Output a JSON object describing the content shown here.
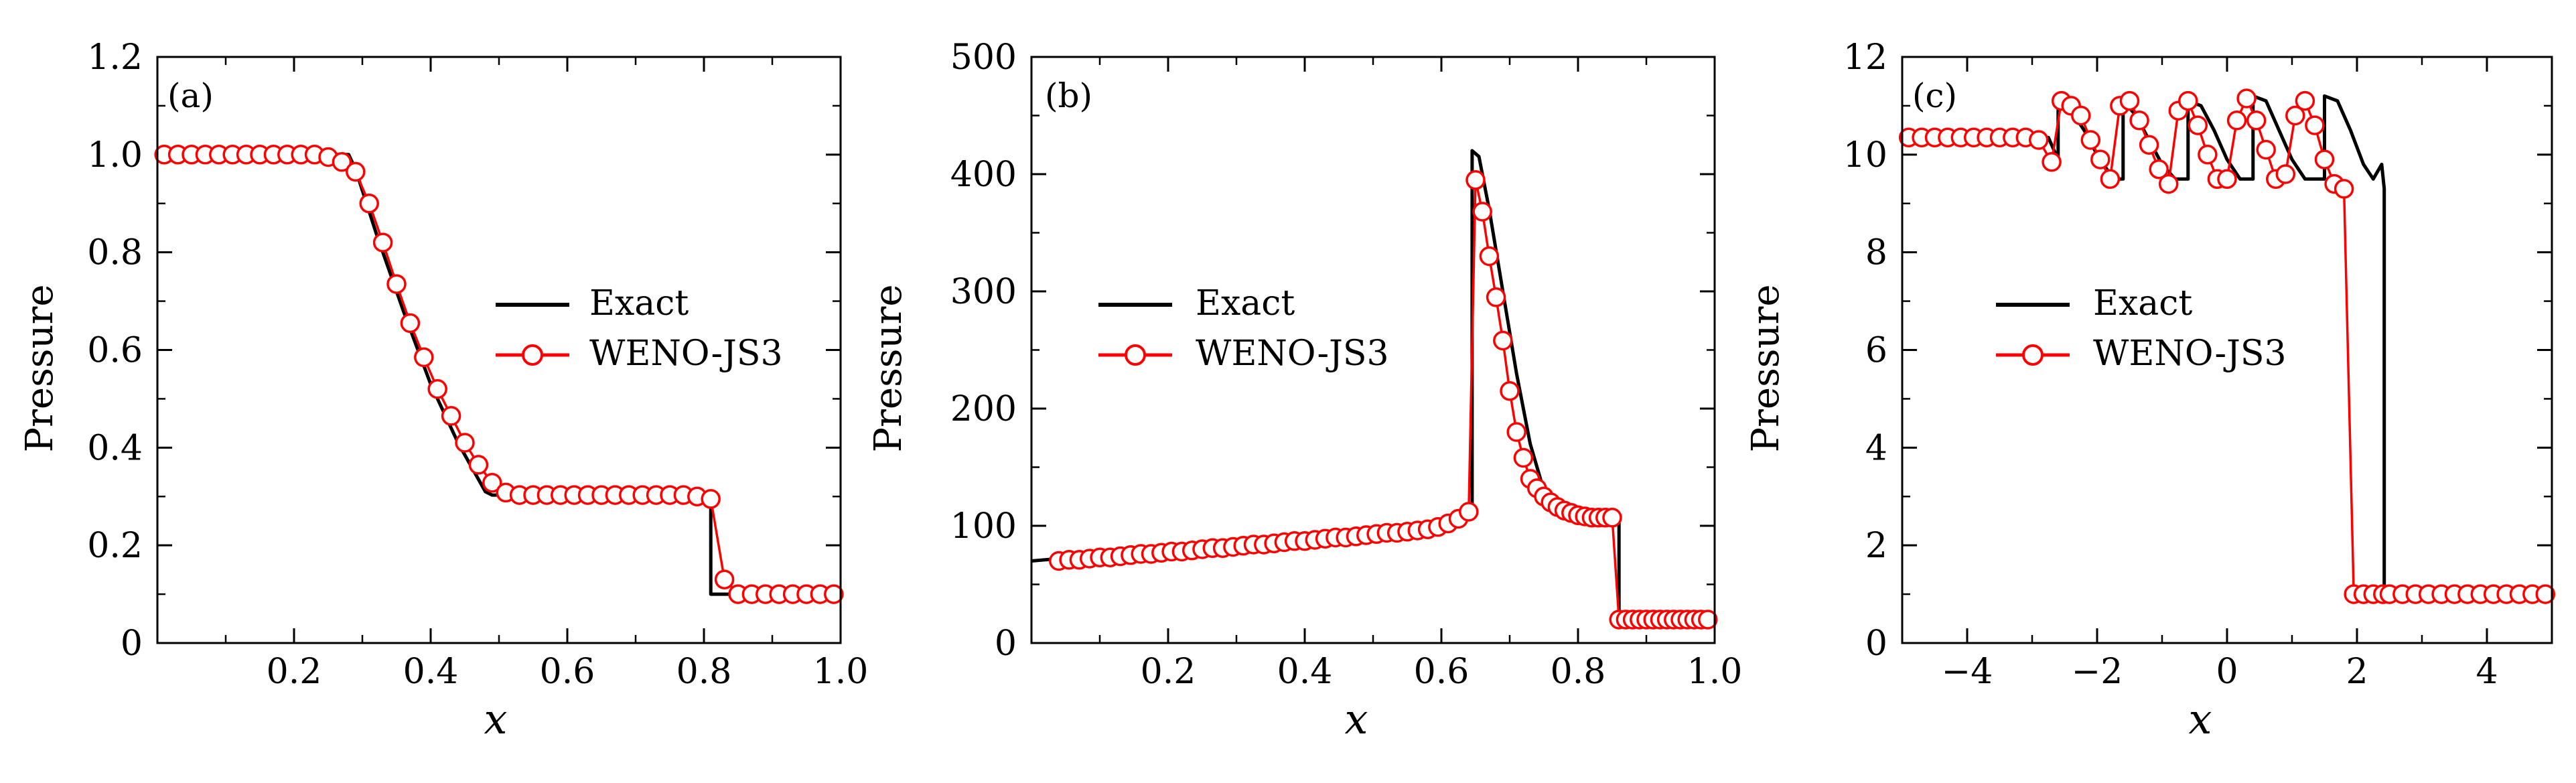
{
  "colors": {
    "exact": "#000000",
    "weno": "#ff0000",
    "marker_fill": "#ffffff",
    "axes": "#000000"
  },
  "legend": {
    "exact": "Exact",
    "weno": "WENO-JS3"
  },
  "chart_data": [
    {
      "type": "line",
      "panel_label": "(a)",
      "xlabel": "x",
      "ylabel": "Pressure",
      "xlim": [
        0.0,
        1.0
      ],
      "ylim": [
        0.0,
        1.2
      ],
      "xticks": [
        0.2,
        0.4,
        0.6,
        0.8,
        1.0
      ],
      "xtick_labels": [
        "0.2",
        "0.4",
        "0.6",
        "0.8",
        "1.0"
      ],
      "yticks": [
        0.0,
        0.2,
        0.4,
        0.6,
        0.8,
        1.0,
        1.2
      ],
      "ytick_labels": [
        "0",
        "0.2",
        "0.4",
        "0.6",
        "0.8",
        "1.0",
        "1.2"
      ],
      "legend_position": "center-right",
      "series": [
        {
          "name": "Exact",
          "x": [
            0.0,
            0.28,
            0.29,
            0.32,
            0.36,
            0.4,
            0.44,
            0.48,
            0.49,
            0.81,
            0.81,
            1.0
          ],
          "y": [
            1.0,
            1.0,
            0.97,
            0.84,
            0.68,
            0.53,
            0.41,
            0.31,
            0.303,
            0.303,
            0.1,
            0.1
          ]
        },
        {
          "name": "WENO-JS3",
          "x": [
            0.01,
            0.03,
            0.05,
            0.07,
            0.09,
            0.11,
            0.13,
            0.15,
            0.17,
            0.19,
            0.21,
            0.23,
            0.25,
            0.27,
            0.29,
            0.31,
            0.33,
            0.35,
            0.37,
            0.39,
            0.41,
            0.43,
            0.45,
            0.47,
            0.49,
            0.51,
            0.53,
            0.55,
            0.57,
            0.59,
            0.61,
            0.63,
            0.65,
            0.67,
            0.69,
            0.71,
            0.73,
            0.75,
            0.77,
            0.79,
            0.81,
            0.83,
            0.85,
            0.87,
            0.89,
            0.91,
            0.93,
            0.95,
            0.97,
            0.99
          ],
          "y": [
            1.0,
            1.0,
            1.0,
            1.0,
            1.0,
            1.0,
            1.0,
            1.0,
            1.0,
            1.0,
            1.0,
            1.0,
            0.995,
            0.985,
            0.965,
            0.9,
            0.82,
            0.735,
            0.655,
            0.585,
            0.52,
            0.465,
            0.41,
            0.365,
            0.328,
            0.308,
            0.303,
            0.303,
            0.303,
            0.303,
            0.303,
            0.303,
            0.303,
            0.303,
            0.303,
            0.303,
            0.303,
            0.303,
            0.303,
            0.3,
            0.295,
            0.13,
            0.1,
            0.1,
            0.1,
            0.1,
            0.1,
            0.1,
            0.1,
            0.1
          ]
        }
      ]
    },
    {
      "type": "line",
      "panel_label": "(b)",
      "xlabel": "x",
      "ylabel": "Pressure",
      "xlim": [
        0.0,
        1.0
      ],
      "ylim": [
        0,
        500
      ],
      "xticks": [
        0.2,
        0.4,
        0.6,
        0.8,
        1.0
      ],
      "xtick_labels": [
        "0.2",
        "0.4",
        "0.6",
        "0.8",
        "1.0"
      ],
      "yticks": [
        0,
        100,
        200,
        300,
        400,
        500
      ],
      "ytick_labels": [
        "0",
        "100",
        "200",
        "300",
        "400",
        "500"
      ],
      "legend_position": "center-left",
      "series": [
        {
          "name": "Exact",
          "x": [
            0.0,
            0.1,
            0.2,
            0.3,
            0.4,
            0.5,
            0.55,
            0.6,
            0.635,
            0.645,
            0.645,
            0.655,
            0.67,
            0.69,
            0.71,
            0.73,
            0.75,
            0.78,
            0.8,
            0.83,
            0.86,
            0.86,
            1.0
          ],
          "y": [
            70,
            75,
            80,
            85,
            90,
            95,
            98,
            102,
            110,
            115,
            420,
            415,
            370,
            300,
            230,
            170,
            130,
            118,
            112,
            108,
            106,
            20,
            20
          ]
        },
        {
          "name": "WENO-JS3",
          "x": [
            0.04,
            0.055,
            0.07,
            0.085,
            0.1,
            0.115,
            0.13,
            0.145,
            0.16,
            0.175,
            0.19,
            0.205,
            0.22,
            0.235,
            0.25,
            0.265,
            0.28,
            0.295,
            0.31,
            0.325,
            0.34,
            0.355,
            0.37,
            0.385,
            0.4,
            0.415,
            0.43,
            0.445,
            0.46,
            0.475,
            0.49,
            0.505,
            0.52,
            0.535,
            0.55,
            0.565,
            0.58,
            0.595,
            0.61,
            0.625,
            0.64,
            0.65,
            0.66,
            0.67,
            0.68,
            0.69,
            0.7,
            0.71,
            0.72,
            0.73,
            0.74,
            0.75,
            0.76,
            0.77,
            0.78,
            0.79,
            0.8,
            0.81,
            0.82,
            0.83,
            0.84,
            0.85,
            0.86,
            0.87,
            0.88,
            0.89,
            0.9,
            0.91,
            0.92,
            0.93,
            0.94,
            0.95,
            0.96,
            0.97,
            0.98,
            0.99
          ],
          "y": [
            70,
            71,
            71,
            72,
            73,
            73,
            74,
            75,
            76,
            76,
            77,
            78,
            78,
            79,
            80,
            81,
            81,
            82,
            83,
            84,
            84,
            85,
            86,
            87,
            87,
            88,
            89,
            90,
            90,
            91,
            92,
            93,
            94,
            94,
            95,
            96,
            97,
            99,
            102,
            106,
            112,
            395,
            368,
            330,
            295,
            258,
            215,
            180,
            158,
            140,
            132,
            125,
            120,
            116,
            113,
            111,
            109,
            108,
            107,
            107,
            107,
            107,
            20,
            20,
            20,
            20,
            20,
            20,
            20,
            20,
            20,
            20,
            20,
            20,
            20,
            20
          ]
        }
      ]
    },
    {
      "type": "line",
      "panel_label": "(c)",
      "xlabel": "x",
      "ylabel": "Pressure",
      "xlim": [
        -5.0,
        5.0
      ],
      "ylim": [
        0,
        12
      ],
      "xticks": [
        -4,
        -2,
        0,
        2,
        4
      ],
      "xtick_labels": [
        "−4",
        "−2",
        "0",
        "2",
        "4"
      ],
      "yticks": [
        0,
        2,
        4,
        6,
        8,
        10,
        12
      ],
      "ytick_labels": [
        "0",
        "2",
        "4",
        "6",
        "8",
        "10",
        "12"
      ],
      "legend_position": "center",
      "series": [
        {
          "name": "Exact",
          "x": [
            -5.0,
            -2.75,
            -2.7,
            -2.6,
            -2.6,
            -2.4,
            -2.2,
            -2.0,
            -1.8,
            -1.7,
            -1.6,
            -1.6,
            -1.4,
            -1.2,
            -1.0,
            -0.8,
            -0.7,
            -0.6,
            -0.6,
            -0.4,
            -0.2,
            0.0,
            0.2,
            0.3,
            0.4,
            0.4,
            0.6,
            0.8,
            1.0,
            1.2,
            1.3,
            1.5,
            1.5,
            1.7,
            1.9,
            2.1,
            2.25,
            2.38,
            2.38,
            2.42,
            2.42,
            5.0
          ],
          "y": [
            10.35,
            10.35,
            10.2,
            9.9,
            11.1,
            10.9,
            10.5,
            10.0,
            9.6,
            9.5,
            9.5,
            11.1,
            10.8,
            10.3,
            9.8,
            9.5,
            9.5,
            9.5,
            11.1,
            11.0,
            10.5,
            9.9,
            9.5,
            9.5,
            9.5,
            11.2,
            11.1,
            10.5,
            9.9,
            9.5,
            9.5,
            9.5,
            11.2,
            11.1,
            10.5,
            9.8,
            9.5,
            9.8,
            9.8,
            9.3,
            1.0,
            1.0
          ]
        },
        {
          "name": "WENO-JS3",
          "x": [
            -4.9,
            -4.7,
            -4.5,
            -4.3,
            -4.1,
            -3.9,
            -3.7,
            -3.5,
            -3.3,
            -3.1,
            -2.9,
            -2.7,
            -2.55,
            -2.4,
            -2.25,
            -2.1,
            -1.95,
            -1.8,
            -1.65,
            -1.5,
            -1.35,
            -1.2,
            -1.05,
            -0.9,
            -0.75,
            -0.6,
            -0.45,
            -0.3,
            -0.15,
            0.0,
            0.15,
            0.3,
            0.45,
            0.6,
            0.75,
            0.9,
            1.05,
            1.2,
            1.35,
            1.5,
            1.65,
            1.8,
            1.95,
            2.1,
            2.25,
            2.4,
            2.5,
            2.7,
            2.9,
            3.1,
            3.3,
            3.5,
            3.7,
            3.9,
            4.1,
            4.3,
            4.5,
            4.7,
            4.9
          ],
          "y": [
            10.35,
            10.35,
            10.35,
            10.35,
            10.35,
            10.35,
            10.35,
            10.35,
            10.35,
            10.35,
            10.3,
            9.85,
            11.1,
            11.0,
            10.8,
            10.3,
            9.9,
            9.5,
            11.0,
            11.1,
            10.7,
            10.2,
            9.7,
            9.4,
            10.9,
            11.1,
            10.6,
            10.0,
            9.5,
            9.5,
            10.7,
            11.15,
            10.7,
            10.1,
            9.5,
            9.6,
            10.8,
            11.1,
            10.6,
            9.9,
            9.4,
            9.3,
            1.0,
            1.0,
            1.0,
            1.0,
            1.0,
            1.0,
            1.0,
            1.0,
            1.0,
            1.0,
            1.0,
            1.0,
            1.0,
            1.0,
            1.0,
            1.0,
            1.0
          ]
        }
      ]
    }
  ]
}
